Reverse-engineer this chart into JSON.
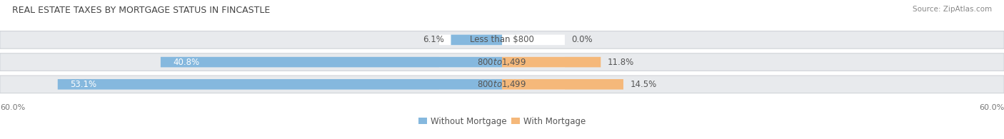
{
  "title": "REAL ESTATE TAXES BY MORTGAGE STATUS IN FINCASTLE",
  "source": "Source: ZipAtlas.com",
  "rows": [
    {
      "label_center": "Less than $800",
      "without_mortgage": 6.1,
      "with_mortgage": 0.0
    },
    {
      "label_center": "$800 to $1,499",
      "without_mortgage": 40.8,
      "with_mortgage": 11.8
    },
    {
      "label_center": "$800 to $1,499",
      "without_mortgage": 53.1,
      "with_mortgage": 14.5
    }
  ],
  "x_max": 60.0,
  "color_without": "#85b8de",
  "color_with": "#f5b87a",
  "bar_bg_color": "#e8eaed",
  "bar_border_color": "#d0d3d8",
  "title_fontsize": 9.0,
  "label_fontsize": 8.5,
  "source_fontsize": 7.5,
  "legend_fontsize": 8.5,
  "axis_label_fontsize": 8.0,
  "wm_pct_color": "white",
  "wt_pct_color": "#555555",
  "center_label_color": "#555555",
  "title_color": "#444444",
  "source_color": "#888888",
  "axis_tick_color": "#777777"
}
